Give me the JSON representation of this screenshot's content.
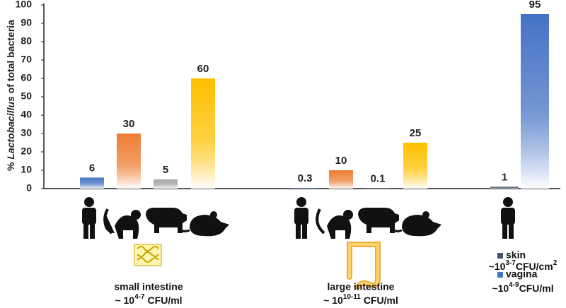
{
  "chart_data": {
    "type": "bar",
    "ylabel": {
      "pre": "% ",
      "italic": "Lactobacillus",
      "post": " of total bacteria"
    },
    "ylim": [
      0,
      100
    ],
    "yticks": [
      0,
      10,
      20,
      30,
      40,
      50,
      60,
      70,
      80,
      90,
      100
    ],
    "groups": [
      {
        "caption": "small intestine",
        "density": {
          "base": "~ 10",
          "exp": "4-7",
          "unit": "CFU/ml"
        },
        "values": [
          6,
          30,
          5,
          60
        ],
        "colors": [
          "#4472c4",
          "#ed7d31",
          "#a5a5a5",
          "#ffc000"
        ]
      },
      {
        "caption": "large intestine",
        "density": {
          "base": "~ 10",
          "exp": "10-11",
          "unit": "CFU/ml"
        },
        "values": [
          0.3,
          10,
          0.1,
          25
        ],
        "colors": [
          "#4472c4",
          "#ed7d31",
          "#a5a5a5",
          "#ffc000"
        ]
      },
      {
        "values": [
          1,
          95
        ],
        "colors": [
          "#44546a",
          "#4472c4"
        ],
        "legend": [
          {
            "name": "skin",
            "base": "~10",
            "exp": "3-7",
            "unit": "CFU/cm",
            "sup2": "2"
          },
          {
            "name": "vagina",
            "base": "~10",
            "exp": "4-9",
            "unit": "CFU/ml"
          }
        ]
      }
    ]
  }
}
